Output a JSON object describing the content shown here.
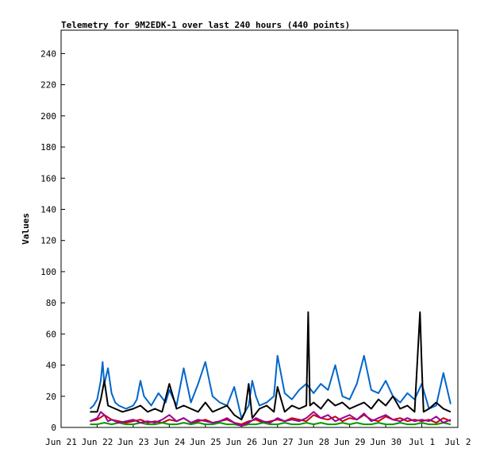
{
  "chart_data": {
    "type": "line",
    "title": "Telemetry for 9M2EDK-1 over last 240 hours (440 points)",
    "xlabel": "",
    "ylabel": "Values",
    "ylim": [
      0,
      255
    ],
    "yticks": [
      0,
      20,
      40,
      60,
      80,
      100,
      120,
      140,
      160,
      180,
      200,
      220,
      240
    ],
    "xlim": [
      0,
      11
    ],
    "xticks": [
      {
        "x": 0,
        "label": "Jun 21"
      },
      {
        "x": 1,
        "label": "Jun 22"
      },
      {
        "x": 2,
        "label": "Jun 23"
      },
      {
        "x": 3,
        "label": "Jun 24"
      },
      {
        "x": 4,
        "label": "Jun 25"
      },
      {
        "x": 5,
        "label": "Jun 26"
      },
      {
        "x": 6,
        "label": "Jun 27"
      },
      {
        "x": 7,
        "label": "Jun 28"
      },
      {
        "x": 8,
        "label": "Jun 29"
      },
      {
        "x": 9,
        "label": "Jun 30"
      },
      {
        "x": 10,
        "label": "Jul 1"
      },
      {
        "x": 11,
        "label": "Jul 2"
      }
    ],
    "grid": false,
    "series": [
      {
        "color": "#0066cc",
        "x": [
          0.8,
          0.9,
          1.0,
          1.1,
          1.15,
          1.2,
          1.3,
          1.4,
          1.5,
          1.6,
          1.8,
          2.0,
          2.1,
          2.2,
          2.3,
          2.5,
          2.7,
          2.9,
          3.0,
          3.2,
          3.4,
          3.6,
          3.8,
          4.0,
          4.2,
          4.4,
          4.6,
          4.8,
          5.0,
          5.2,
          5.3,
          5.4,
          5.5,
          5.7,
          5.9,
          6.0,
          6.2,
          6.4,
          6.6,
          6.8,
          7.0,
          7.2,
          7.4,
          7.6,
          7.8,
          8.0,
          8.2,
          8.4,
          8.6,
          8.8,
          9.0,
          9.2,
          9.4,
          9.6,
          9.8,
          10.0,
          10.2,
          10.4,
          10.6,
          10.8
        ],
        "y": [
          12,
          14,
          18,
          30,
          42,
          28,
          38,
          22,
          16,
          14,
          12,
          14,
          18,
          30,
          20,
          14,
          22,
          16,
          24,
          14,
          38,
          16,
          28,
          42,
          20,
          16,
          14,
          26,
          6,
          14,
          30,
          20,
          14,
          16,
          20,
          46,
          22,
          18,
          24,
          28,
          22,
          28,
          24,
          40,
          20,
          18,
          28,
          46,
          24,
          22,
          30,
          20,
          16,
          22,
          18,
          28,
          12,
          14,
          35,
          15
        ]
      },
      {
        "color": "#000000",
        "x": [
          0.8,
          1.0,
          1.1,
          1.2,
          1.3,
          1.5,
          1.7,
          2.0,
          2.2,
          2.4,
          2.6,
          2.8,
          3.0,
          3.2,
          3.4,
          3.6,
          3.8,
          4.0,
          4.2,
          4.4,
          4.6,
          4.8,
          5.0,
          5.1,
          5.2,
          5.3,
          5.5,
          5.7,
          5.9,
          6.0,
          6.2,
          6.4,
          6.6,
          6.8,
          6.85,
          6.9,
          7.0,
          7.2,
          7.4,
          7.6,
          7.8,
          8.0,
          8.2,
          8.4,
          8.6,
          8.8,
          9.0,
          9.2,
          9.4,
          9.6,
          9.8,
          9.95,
          10.0,
          10.05,
          10.2,
          10.4,
          10.6,
          10.8
        ],
        "y": [
          10,
          10,
          18,
          30,
          14,
          12,
          10,
          12,
          14,
          10,
          12,
          10,
          28,
          12,
          14,
          12,
          10,
          16,
          10,
          12,
          14,
          8,
          5,
          10,
          28,
          6,
          12,
          14,
          10,
          26,
          10,
          14,
          12,
          14,
          74,
          14,
          16,
          12,
          18,
          14,
          16,
          12,
          14,
          16,
          12,
          18,
          14,
          20,
          12,
          14,
          10,
          74,
          40,
          10,
          12,
          16,
          12,
          10
        ]
      },
      {
        "color": "#cc0000",
        "x": [
          0.8,
          1.0,
          1.2,
          1.4,
          1.6,
          1.8,
          2.0,
          2.2,
          2.4,
          2.6,
          2.8,
          3.0,
          3.2,
          3.4,
          3.6,
          3.8,
          4.0,
          4.2,
          4.4,
          4.6,
          4.8,
          5.0,
          5.2,
          5.4,
          5.6,
          5.8,
          6.0,
          6.2,
          6.4,
          6.6,
          6.8,
          7.0,
          7.2,
          7.4,
          7.6,
          7.8,
          8.0,
          8.2,
          8.4,
          8.6,
          8.8,
          9.0,
          9.2,
          9.4,
          9.6,
          9.8,
          10.0,
          10.2,
          10.4,
          10.6,
          10.8
        ],
        "y": [
          4,
          5,
          8,
          5,
          4,
          3,
          4,
          5,
          3,
          4,
          3,
          5,
          4,
          6,
          3,
          4,
          5,
          3,
          4,
          5,
          3,
          2,
          4,
          5,
          3,
          4,
          5,
          4,
          6,
          5,
          4,
          8,
          6,
          5,
          7,
          4,
          6,
          5,
          8,
          5,
          4,
          7,
          5,
          6,
          4,
          5,
          4,
          5,
          3,
          6,
          4
        ]
      },
      {
        "color": "#009900",
        "x": [
          0.8,
          1.0,
          1.2,
          1.4,
          1.6,
          1.8,
          2.0,
          2.2,
          2.4,
          2.6,
          2.8,
          3.0,
          3.2,
          3.4,
          3.6,
          3.8,
          4.0,
          4.2,
          4.4,
          4.6,
          4.8,
          5.0,
          5.2,
          5.4,
          5.6,
          5.8,
          6.0,
          6.2,
          6.4,
          6.6,
          6.8,
          7.0,
          7.2,
          7.4,
          7.6,
          7.8,
          8.0,
          8.2,
          8.4,
          8.6,
          8.8,
          9.0,
          9.2,
          9.4,
          9.6,
          9.8,
          10.0,
          10.2,
          10.4,
          10.6,
          10.8
        ],
        "y": [
          2,
          2,
          3,
          2,
          3,
          2,
          2,
          3,
          2,
          2,
          3,
          2,
          2,
          3,
          2,
          3,
          2,
          2,
          3,
          2,
          2,
          1,
          2,
          2,
          3,
          2,
          2,
          3,
          2,
          2,
          3,
          2,
          3,
          2,
          2,
          3,
          2,
          3,
          2,
          2,
          3,
          2,
          2,
          3,
          2,
          2,
          3,
          2,
          2,
          3,
          2
        ]
      },
      {
        "color": "#990099",
        "x": [
          0.8,
          1.0,
          1.1,
          1.2,
          1.3,
          1.4,
          1.6,
          1.8,
          2.0,
          2.2,
          2.4,
          2.6,
          2.8,
          3.0,
          3.2,
          3.4,
          3.6,
          3.8,
          4.0,
          4.2,
          4.4,
          4.6,
          4.8,
          5.0,
          5.2,
          5.4,
          5.6,
          5.8,
          6.0,
          6.2,
          6.4,
          6.6,
          6.8,
          7.0,
          7.2,
          7.4,
          7.6,
          7.8,
          8.0,
          8.2,
          8.4,
          8.6,
          8.8,
          9.0,
          9.2,
          9.4,
          9.6,
          9.8,
          10.0,
          10.2,
          10.4,
          10.6,
          10.8
        ],
        "y": [
          4,
          6,
          10,
          8,
          4,
          5,
          3,
          4,
          5,
          3,
          4,
          3,
          5,
          8,
          4,
          6,
          3,
          5,
          4,
          3,
          4,
          6,
          3,
          1,
          3,
          6,
          4,
          3,
          6,
          4,
          5,
          4,
          6,
          10,
          6,
          8,
          4,
          6,
          8,
          5,
          9,
          4,
          6,
          8,
          5,
          4,
          6,
          4,
          5,
          4,
          7,
          3,
          5
        ]
      }
    ]
  }
}
